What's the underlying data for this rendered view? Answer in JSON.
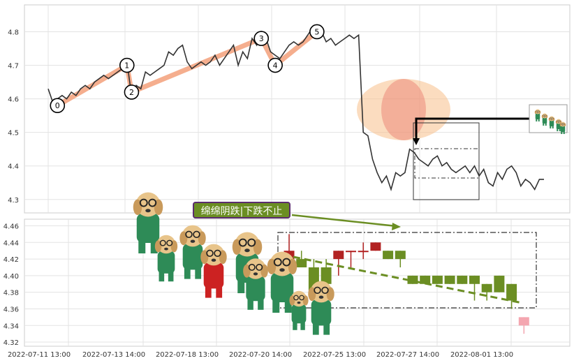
{
  "chart_data": [
    {
      "type": "line",
      "name": "top-price-line",
      "y_ticks": [
        "4.3",
        "4.4",
        "4.5",
        "4.6",
        "4.7",
        "4.8"
      ],
      "ylim": [
        4.26,
        4.88
      ],
      "grid": true,
      "series": [
        {
          "name": "",
          "values": [
            4.63,
            4.59,
            4.6,
            4.61,
            4.6,
            4.62,
            4.61,
            4.63,
            4.64,
            4.63,
            4.65,
            4.66,
            4.67,
            4.66,
            4.67,
            4.68,
            4.69,
            4.71,
            4.61,
            4.64,
            4.63,
            4.68,
            4.67,
            4.68,
            4.69,
            4.7,
            4.74,
            4.73,
            4.75,
            4.76,
            4.71,
            4.69,
            4.7,
            4.71,
            4.7,
            4.71,
            4.73,
            4.7,
            4.72,
            4.74,
            4.76,
            4.7,
            4.74,
            4.72,
            4.78,
            4.76,
            4.8,
            4.78,
            4.74,
            4.73,
            4.72,
            4.74,
            4.76,
            4.77,
            4.76,
            4.77,
            4.79,
            4.81,
            4.82,
            4.8,
            4.77,
            4.78,
            4.76,
            4.77,
            4.78,
            4.79,
            4.78,
            4.79,
            4.5,
            4.49,
            4.42,
            4.38,
            4.35,
            4.37,
            4.33,
            4.38,
            4.37,
            4.38,
            4.45,
            4.44,
            4.42,
            4.41,
            4.4,
            4.42,
            4.43,
            4.4,
            4.41,
            4.39,
            4.38,
            4.39,
            4.4,
            4.38,
            4.4,
            4.37,
            4.39,
            4.35,
            4.34,
            4.38,
            4.36,
            4.39,
            4.4,
            4.38,
            4.34,
            4.36,
            4.35,
            4.33,
            4.36,
            4.36
          ]
        }
      ],
      "wave_points": [
        {
          "label": "0",
          "y": 4.58
        },
        {
          "label": "1",
          "y": 4.7
        },
        {
          "label": "2",
          "y": 4.62
        },
        {
          "label": "3",
          "y": 4.78
        },
        {
          "label": "4",
          "y": 4.7
        },
        {
          "label": "5",
          "y": 4.8
        }
      ]
    },
    {
      "type": "candlestick",
      "name": "bottom-zoom-candles",
      "x_tick_labels": [
        "2022-07-11 13:00",
        "2022-07-13 14:00",
        "2022-07-18 13:00",
        "2022-07-20 14:00",
        "2022-07-25 13:00",
        "2022-07-27 14:00",
        "2022-08-01 13:00"
      ],
      "y_ticks": [
        "4.32",
        "4.34",
        "4.36",
        "4.38",
        "4.40",
        "4.42",
        "4.44",
        "4.46"
      ],
      "ylim": [
        4.315,
        4.468
      ],
      "grid": true,
      "candles": [
        {
          "open": 4.42,
          "close": 4.43,
          "high": 4.45,
          "low": 4.41,
          "up": true
        },
        {
          "open": 4.42,
          "close": 4.41,
          "high": 4.43,
          "low": 4.41,
          "up": false
        },
        {
          "open": 4.41,
          "close": 4.38,
          "high": 4.42,
          "low": 4.38,
          "up": false
        },
        {
          "open": 4.41,
          "close": 4.39,
          "high": 4.42,
          "low": 4.39,
          "up": false
        },
        {
          "open": 4.42,
          "close": 4.43,
          "high": 4.43,
          "low": 4.4,
          "up": true
        },
        {
          "open": 4.43,
          "close": 4.43,
          "high": 4.43,
          "low": 4.41,
          "up": true
        },
        {
          "open": 4.43,
          "close": 4.43,
          "high": 4.44,
          "low": 4.42,
          "up": true
        },
        {
          "open": 4.44,
          "close": 4.43,
          "high": 4.44,
          "low": 4.43,
          "up": true
        },
        {
          "open": 4.43,
          "close": 4.42,
          "high": 4.43,
          "low": 4.42,
          "up": false
        },
        {
          "open": 4.43,
          "close": 4.42,
          "high": 4.43,
          "low": 4.41,
          "up": false
        },
        {
          "open": 4.4,
          "close": 4.39,
          "high": 4.4,
          "low": 4.39,
          "up": false
        },
        {
          "open": 4.4,
          "close": 4.39,
          "high": 4.4,
          "low": 4.39,
          "up": false
        },
        {
          "open": 4.4,
          "close": 4.39,
          "high": 4.4,
          "low": 4.39,
          "up": false
        },
        {
          "open": 4.4,
          "close": 4.39,
          "high": 4.4,
          "low": 4.39,
          "up": false
        },
        {
          "open": 4.39,
          "close": 4.4,
          "high": 4.4,
          "low": 4.39,
          "up": false
        },
        {
          "open": 4.39,
          "close": 4.4,
          "high": 4.4,
          "low": 4.37,
          "up": false
        },
        {
          "open": 4.38,
          "close": 4.39,
          "high": 4.39,
          "low": 4.37,
          "up": false
        },
        {
          "open": 4.38,
          "close": 4.4,
          "high": 4.4,
          "low": 4.38,
          "up": false
        },
        {
          "open": 4.37,
          "close": 4.39,
          "high": 4.39,
          "low": 4.36,
          "up": false
        },
        {
          "open": 4.35,
          "close": 4.34,
          "high": 4.35,
          "low": 4.33,
          "up": true
        }
      ],
      "annotation_text": "绵绵阴跌|下跌不止",
      "colors": {
        "up": "#c0392b",
        "down": "#6b8e23",
        "line": "#333333",
        "trend": "#6b8e23",
        "wave": "#f4a582",
        "annotation_bg": "#6b8e23"
      }
    }
  ]
}
